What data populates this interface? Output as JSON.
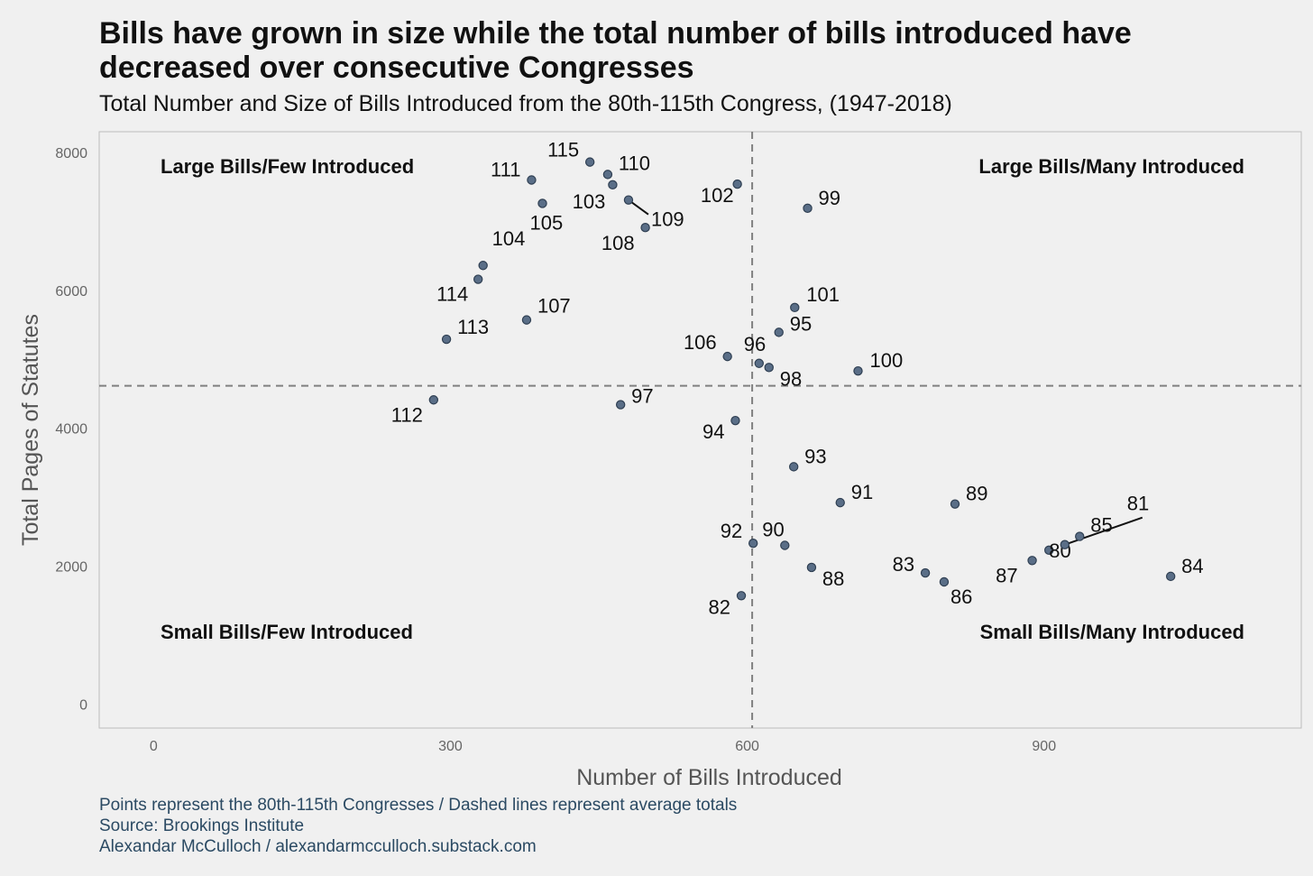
{
  "title": "Bills have grown in size while the total number of bills introduced have decreased over consecutive Congresses",
  "subtitle": "Total Number and Size of Bills Introduced from the 80th-115th Congress, (1947-2018)",
  "caption": {
    "line1": "Points represent the 80th-115th Congresses / Dashed lines represent average totals",
    "line2": "Source: Brookings Institute",
    "line3": "Alexandar McCulloch / alexandarmcculloch.substack.com"
  },
  "chart_data": {
    "type": "scatter",
    "xlabel": "Number of Bills Introduced",
    "ylabel": "Total Pages of Statutes",
    "xlim": [
      -55,
      1160
    ],
    "ylim": [
      -350,
      8300
    ],
    "xticks": [
      0,
      300,
      600,
      900
    ],
    "yticks": [
      0,
      2000,
      4000,
      6000,
      8000
    ],
    "grid": false,
    "point_color": "#5a6e87",
    "mean_lines": {
      "x": 605,
      "y": 4615
    },
    "quadrant_labels": {
      "top_left": "Large Bills/Few Introduced",
      "top_right": "Large Bills/Many Introduced",
      "bottom_left": "Small Bills/Few Introduced",
      "bottom_right": "Small Bills/Many Introduced"
    },
    "points": [
      {
        "label": "80",
        "x": 905,
        "y": 2230
      },
      {
        "label": "81",
        "x": 921,
        "y": 2310
      },
      {
        "label": "82",
        "x": 594,
        "y": 1570
      },
      {
        "label": "83",
        "x": 780,
        "y": 1900
      },
      {
        "label": "84",
        "x": 1028,
        "y": 1850
      },
      {
        "label": "85",
        "x": 936,
        "y": 2430
      },
      {
        "label": "86",
        "x": 799,
        "y": 1770
      },
      {
        "label": "87",
        "x": 888,
        "y": 2080
      },
      {
        "label": "88",
        "x": 665,
        "y": 1980
      },
      {
        "label": "89",
        "x": 810,
        "y": 2900
      },
      {
        "label": "90",
        "x": 638,
        "y": 2300
      },
      {
        "label": "91",
        "x": 694,
        "y": 2920
      },
      {
        "label": "92",
        "x": 606,
        "y": 2330
      },
      {
        "label": "93",
        "x": 647,
        "y": 3440
      },
      {
        "label": "94",
        "x": 588,
        "y": 4110
      },
      {
        "label": "95",
        "x": 632,
        "y": 5390
      },
      {
        "label": "96",
        "x": 612,
        "y": 4940
      },
      {
        "label": "97",
        "x": 472,
        "y": 4340
      },
      {
        "label": "98",
        "x": 622,
        "y": 4880
      },
      {
        "label": "99",
        "x": 661,
        "y": 7190
      },
      {
        "label": "100",
        "x": 712,
        "y": 4830
      },
      {
        "label": "101",
        "x": 648,
        "y": 5750
      },
      {
        "label": "102",
        "x": 590,
        "y": 7540
      },
      {
        "label": "103",
        "x": 464,
        "y": 7530
      },
      {
        "label": "104",
        "x": 333,
        "y": 6360
      },
      {
        "label": "105",
        "x": 393,
        "y": 7260
      },
      {
        "label": "106",
        "x": 580,
        "y": 5040
      },
      {
        "label": "107",
        "x": 377,
        "y": 5570
      },
      {
        "label": "108",
        "x": 497,
        "y": 6910
      },
      {
        "label": "109",
        "x": 480,
        "y": 7310
      },
      {
        "label": "110",
        "x": 459,
        "y": 7680
      },
      {
        "label": "111",
        "x": 382,
        "y": 7600
      },
      {
        "label": "112",
        "x": 283,
        "y": 4410
      },
      {
        "label": "113",
        "x": 296,
        "y": 5290
      },
      {
        "label": "114",
        "x": 328,
        "y": 6160
      },
      {
        "label": "115",
        "x": 441,
        "y": 7860
      }
    ]
  }
}
